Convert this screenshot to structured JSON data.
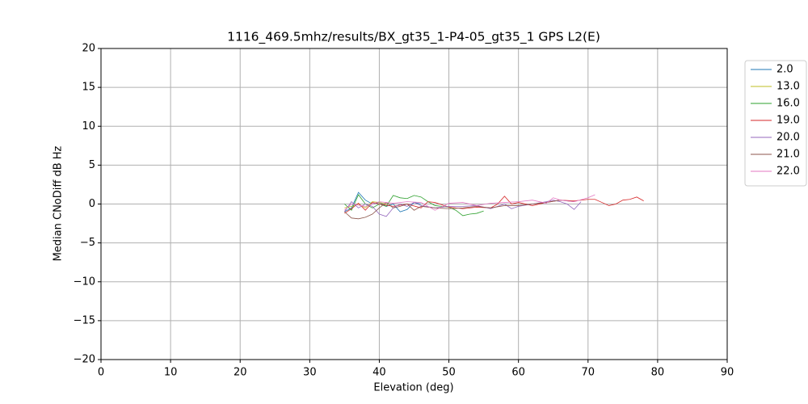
{
  "chart_data": {
    "type": "line",
    "title": "1116_469.5mhz/results/BX_gt35_1-P4-05_gt35_1 GPS L2(E)",
    "x_label": "Elevation (deg)",
    "y_label": "Median CNoDiff dB Hz",
    "xlim": [
      0,
      90
    ],
    "ylim": [
      -20,
      20
    ],
    "xticks": [
      0,
      10,
      20,
      30,
      40,
      50,
      60,
      70,
      80,
      90
    ],
    "yticks": [
      {
        "value": -20,
        "label": "−20"
      },
      {
        "value": -15,
        "label": "−15"
      },
      {
        "value": -10,
        "label": "−10"
      },
      {
        "value": -5,
        "label": "−5"
      },
      0,
      5,
      10,
      15,
      20
    ],
    "grid": true,
    "legend": "outside upper right",
    "series": [
      {
        "name": "2.0",
        "color": "#1f77b4",
        "x": [
          35,
          36,
          37,
          38,
          39,
          40,
          41,
          42,
          43,
          44,
          45,
          46
        ],
        "values": [
          -1,
          -0.5,
          1.5,
          0.5,
          0,
          0.2,
          -0.3,
          0,
          -1,
          -0.7,
          0.2,
          0
        ]
      },
      {
        "name": "13.0",
        "color": "#bcbd22",
        "x": [
          35,
          36,
          37,
          38,
          39,
          40,
          41
        ],
        "values": [
          -0.5,
          -0.3,
          0,
          -0.5,
          0.3,
          0.2,
          0
        ]
      },
      {
        "name": "16.0",
        "color": "#2ca02c",
        "x": [
          35,
          36,
          37,
          38,
          39,
          40,
          41,
          42,
          43,
          44,
          45,
          46,
          47,
          48,
          49,
          50,
          51,
          52,
          53,
          54,
          55
        ],
        "values": [
          0,
          -0.8,
          1.2,
          0,
          -0.5,
          0,
          -0.3,
          1.1,
          0.8,
          0.7,
          1.1,
          0.9,
          0.3,
          -0.2,
          -0.3,
          -0.4,
          -0.8,
          -1.5,
          -1.3,
          -1.2,
          -0.9
        ]
      },
      {
        "name": "19.0",
        "color": "#d62728",
        "x": [
          35,
          36,
          37,
          38,
          39,
          40,
          42,
          44,
          46,
          47,
          48,
          50,
          52,
          54,
          56,
          57,
          58,
          59,
          60,
          62,
          64,
          66,
          68,
          70,
          71,
          72,
          73,
          74,
          75,
          76,
          77,
          78
        ],
        "values": [
          -1.2,
          -0.6,
          0.1,
          -0.8,
          0.2,
          0,
          -0.3,
          0,
          -0.5,
          0.3,
          0.2,
          -0.4,
          -0.6,
          -0.4,
          -0.5,
          0,
          1,
          0,
          0.2,
          -0.2,
          0.2,
          0.5,
          0.4,
          0.6,
          0.6,
          0.2,
          -0.2,
          0,
          0.5,
          0.6,
          0.9,
          0.4
        ]
      },
      {
        "name": "20.0",
        "color": "#9467bd",
        "x": [
          35,
          36,
          37,
          38,
          39,
          40,
          41,
          42,
          43,
          44,
          45,
          46,
          48,
          50,
          52,
          54,
          56,
          58,
          59,
          60,
          62,
          64,
          65,
          66,
          67,
          68,
          69
        ],
        "values": [
          -1,
          0.3,
          -0.5,
          0,
          -0.3,
          -1.3,
          -1.6,
          -0.5,
          0,
          -0.3,
          0.2,
          -0.2,
          -0.5,
          -0.3,
          -0.3,
          -0.2,
          -0.6,
          0,
          -0.6,
          -0.3,
          0,
          0.3,
          0.5,
          0.3,
          0,
          -0.7,
          0.3
        ]
      },
      {
        "name": "21.0",
        "color": "#8c564b",
        "x": [
          35,
          36,
          37,
          38,
          39,
          40,
          41,
          42,
          43,
          44,
          45,
          46,
          48,
          50,
          52,
          54,
          56,
          58,
          60,
          62,
          64,
          66,
          68
        ],
        "values": [
          -1,
          -1.8,
          -1.9,
          -1.7,
          -1.3,
          -0.5,
          0.2,
          -0.5,
          -0.3,
          0,
          -0.8,
          -0.3,
          -0.5,
          -0.6,
          -0.5,
          -0.3,
          -0.5,
          -0.2,
          -0.2,
          0,
          0.2,
          0.5,
          0.3
        ]
      },
      {
        "name": "22.0",
        "color": "#e377c2",
        "x": [
          35,
          36,
          38,
          40,
          42,
          44,
          46,
          48,
          50,
          52,
          54,
          56,
          58,
          60,
          62,
          64,
          65,
          66,
          68,
          70,
          71
        ],
        "values": [
          -0.8,
          0,
          -0.3,
          0.3,
          0.1,
          0.3,
          0.2,
          -0.8,
          0.1,
          0.2,
          -0.2,
          0.1,
          0.2,
          0.3,
          0.5,
          0.1,
          0.8,
          0.5,
          0.3,
          0.8,
          1.2
        ]
      }
    ]
  }
}
